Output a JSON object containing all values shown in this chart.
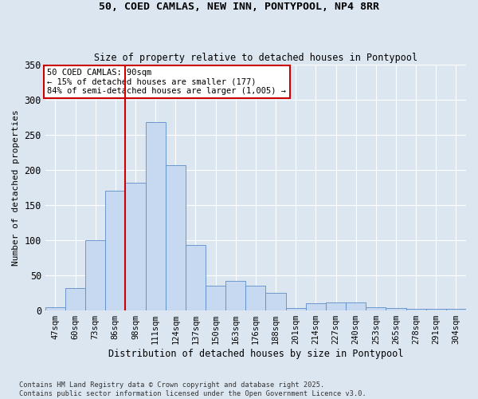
{
  "title": "50, COED CAMLAS, NEW INN, PONTYPOOL, NP4 8RR",
  "subtitle": "Size of property relative to detached houses in Pontypool",
  "xlabel": "Distribution of detached houses by size in Pontypool",
  "ylabel": "Number of detached properties",
  "footnote": "Contains HM Land Registry data © Crown copyright and database right 2025.\nContains public sector information licensed under the Open Government Licence v3.0.",
  "bar_color": "#c6d9f1",
  "bar_edge_color": "#5b8dc8",
  "background_color": "#dce6f1",
  "grid_color": "#ffffff",
  "annotation_box_color": "#ffffff",
  "annotation_box_edge_color": "#cc0000",
  "vertical_line_color": "#cc0000",
  "categories": [
    "47sqm",
    "60sqm",
    "73sqm",
    "86sqm",
    "98sqm",
    "111sqm",
    "124sqm",
    "137sqm",
    "150sqm",
    "163sqm",
    "176sqm",
    "188sqm",
    "201sqm",
    "214sqm",
    "227sqm",
    "240sqm",
    "253sqm",
    "265sqm",
    "278sqm",
    "291sqm",
    "304sqm"
  ],
  "values": [
    5,
    32,
    100,
    170,
    182,
    268,
    207,
    93,
    35,
    42,
    35,
    25,
    4,
    10,
    12,
    12,
    5,
    3,
    2,
    2,
    2
  ],
  "property_label": "50 COED CAMLAS: 90sqm",
  "annotation_line1": "← 15% of detached houses are smaller (177)",
  "annotation_line2": "84% of semi-detached houses are larger (1,005) →",
  "vertical_line_x": 3.5,
  "ylim": [
    0,
    350
  ],
  "yticks": [
    0,
    50,
    100,
    150,
    200,
    250,
    300,
    350
  ]
}
